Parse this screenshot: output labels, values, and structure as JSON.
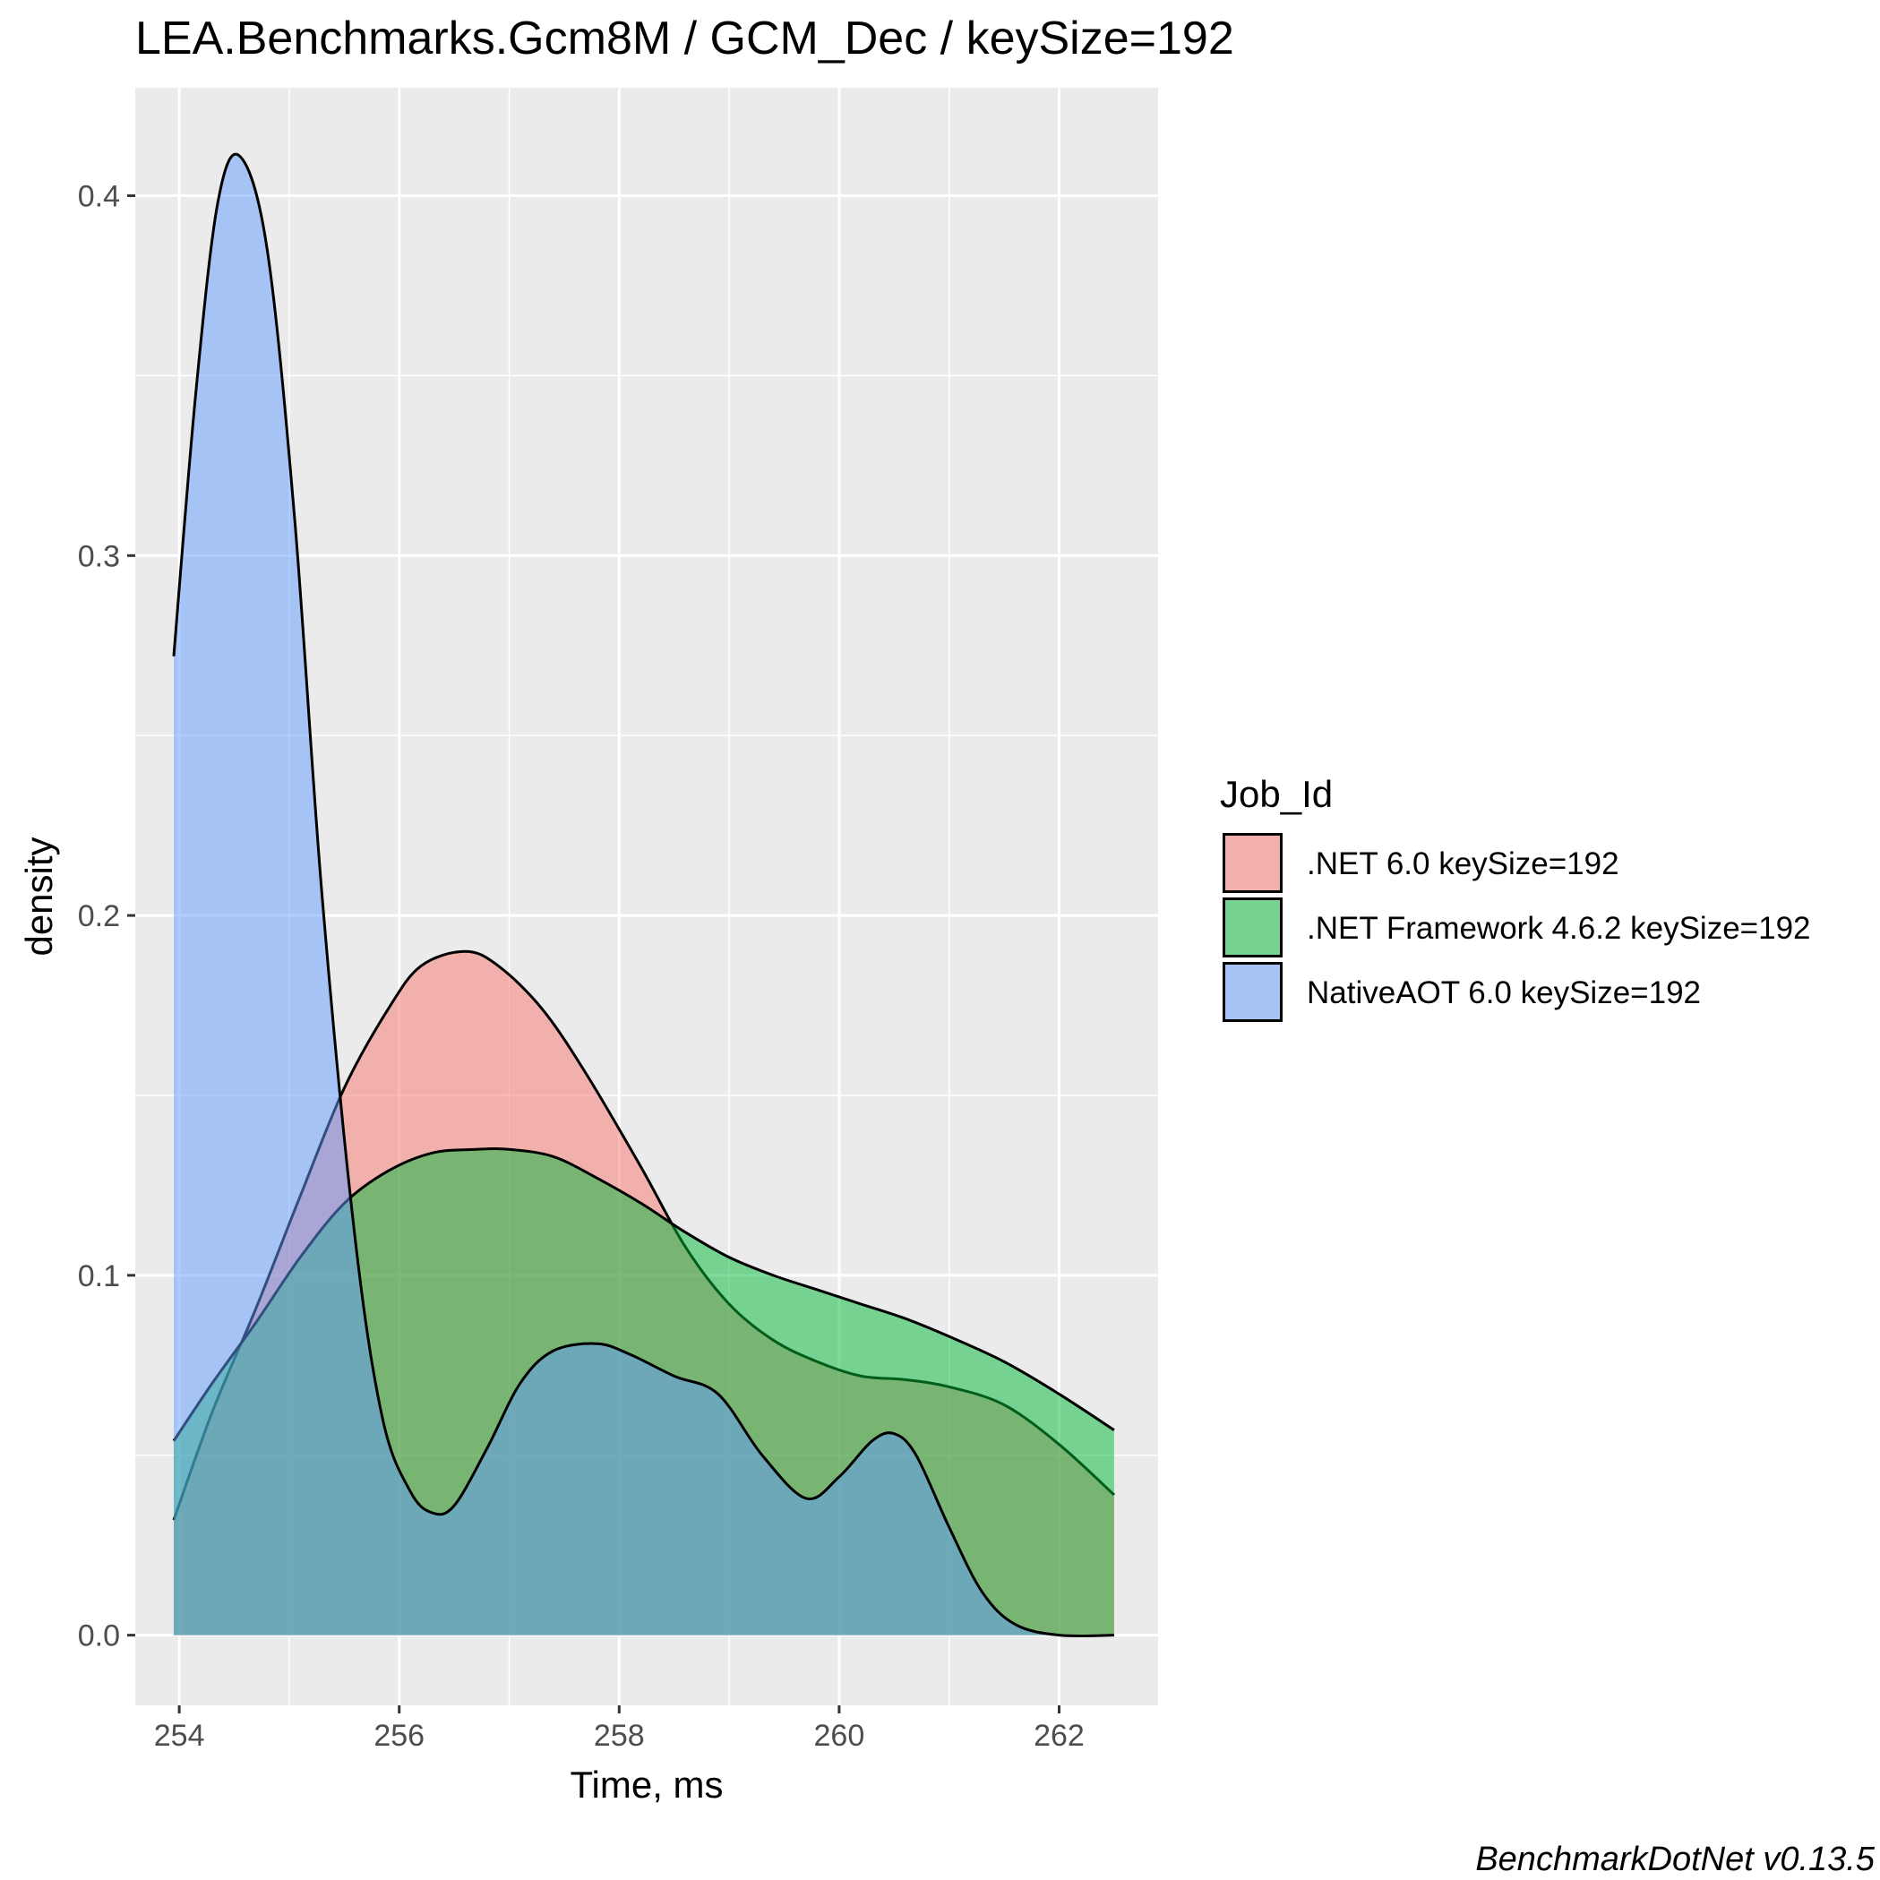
{
  "chart_data": {
    "type": "area",
    "title": "LEA.Benchmarks.Gcm8M / GCM_Dec / keySize=192",
    "xlabel": "Time, ms",
    "ylabel": "density",
    "xlim": [
      253.6,
      262.9
    ],
    "ylim": [
      -0.0195,
      0.43
    ],
    "x_ticks": [
      254,
      256,
      258,
      260,
      262
    ],
    "x_tick_labels": [
      "254",
      "256",
      "258",
      "260",
      "262"
    ],
    "y_ticks": [
      0.0,
      0.1,
      0.2,
      0.3,
      0.4
    ],
    "y_tick_labels": [
      "0.0",
      "0.1",
      "0.2",
      "0.3",
      "0.4"
    ],
    "grid": true,
    "legend": {
      "title": "Job_Id",
      "placement": "right"
    },
    "caption": "BenchmarkDotNet v0.13.5",
    "series": [
      {
        "name": ".NET 6.0 keySize=192",
        "color": "#F8766D",
        "x": [
          253.95,
          254.3,
          254.7,
          255.1,
          255.5,
          255.9,
          256.2,
          256.6,
          256.9,
          257.3,
          257.7,
          258.2,
          258.6,
          259.0,
          259.4,
          259.8,
          260.2,
          260.6,
          261.0,
          261.5,
          262.0,
          262.5
        ],
        "y": [
          0.032,
          0.062,
          0.091,
          0.122,
          0.152,
          0.174,
          0.186,
          0.19,
          0.186,
          0.174,
          0.156,
          0.13,
          0.108,
          0.092,
          0.082,
          0.076,
          0.072,
          0.071,
          0.069,
          0.064,
          0.053,
          0.039
        ]
      },
      {
        "name": ".NET Framework 4.6.2 keySize=192",
        "color": "#00BA38",
        "x": [
          253.95,
          254.3,
          254.7,
          255.1,
          255.5,
          255.9,
          256.3,
          256.7,
          257.0,
          257.4,
          257.8,
          258.2,
          258.6,
          259.0,
          259.4,
          259.8,
          260.2,
          260.6,
          261.0,
          261.5,
          262.0,
          262.5
        ],
        "y": [
          0.054,
          0.07,
          0.087,
          0.105,
          0.12,
          0.129,
          0.134,
          0.135,
          0.135,
          0.133,
          0.127,
          0.12,
          0.112,
          0.105,
          0.1,
          0.096,
          0.092,
          0.088,
          0.083,
          0.076,
          0.067,
          0.057
        ]
      },
      {
        "name": "NativeAOT 6.0 keySize=192",
        "color": "#619CFF",
        "x": [
          253.95,
          254.15,
          254.35,
          254.55,
          254.8,
          255.05,
          255.3,
          255.6,
          255.85,
          256.1,
          256.3,
          256.5,
          256.8,
          257.1,
          257.4,
          257.8,
          258.1,
          258.5,
          258.9,
          259.3,
          259.7,
          260.0,
          260.3,
          260.5,
          260.7,
          261.0,
          261.3,
          261.6,
          262.0,
          262.5
        ],
        "y": [
          0.272,
          0.345,
          0.398,
          0.411,
          0.385,
          0.31,
          0.205,
          0.11,
          0.06,
          0.04,
          0.034,
          0.036,
          0.052,
          0.07,
          0.079,
          0.081,
          0.078,
          0.072,
          0.067,
          0.05,
          0.038,
          0.044,
          0.054,
          0.056,
          0.05,
          0.03,
          0.012,
          0.003,
          0.0,
          0.0
        ]
      }
    ]
  }
}
